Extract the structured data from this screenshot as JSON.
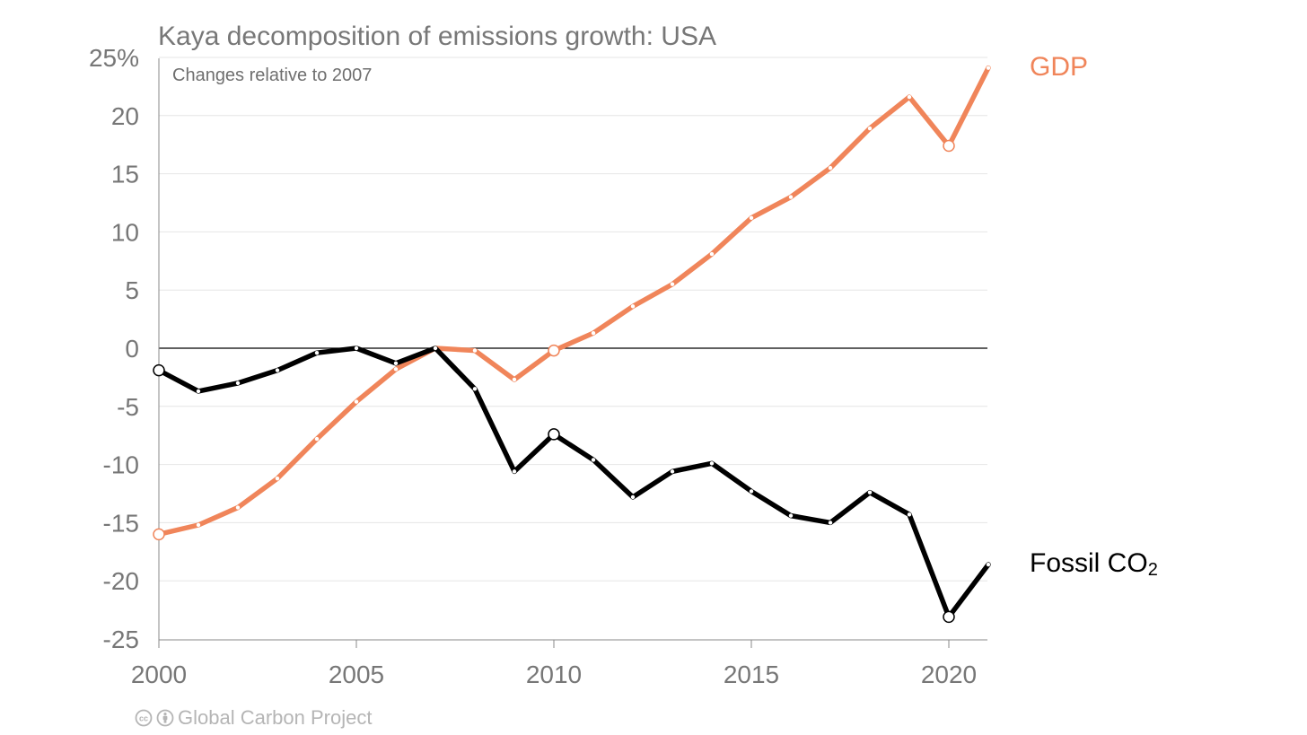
{
  "chart_data": {
    "type": "line",
    "title": "Kaya decomposition of emissions growth: USA",
    "subtitle": "Changes relative to 2007",
    "x": [
      2000,
      2001,
      2002,
      2003,
      2004,
      2005,
      2006,
      2007,
      2008,
      2009,
      2010,
      2011,
      2012,
      2013,
      2014,
      2015,
      2016,
      2017,
      2018,
      2019,
      2020,
      2021
    ],
    "series": [
      {
        "name": "GDP",
        "name_suffix": "",
        "color": "#f0855a",
        "values": [
          -16.0,
          -15.2,
          -13.7,
          -11.2,
          -7.8,
          -4.6,
          -1.8,
          0.0,
          -0.2,
          -2.7,
          -0.2,
          1.3,
          3.6,
          5.5,
          8.1,
          11.2,
          13.0,
          15.5,
          18.9,
          21.6,
          17.4,
          24.1
        ]
      },
      {
        "name": "Fossil CO",
        "name_suffix": "2",
        "color": "#000000",
        "values": [
          -1.9,
          -3.7,
          -3.0,
          -1.9,
          -0.4,
          0.0,
          -1.3,
          0.0,
          -3.5,
          -10.6,
          -7.4,
          -9.6,
          -12.8,
          -10.6,
          -9.9,
          -12.3,
          -14.4,
          -15.0,
          -12.4,
          -14.3,
          -23.1,
          -18.6
        ]
      }
    ],
    "highlight_years": [
      2000,
      2010,
      2020
    ],
    "ylim": [
      -25,
      25
    ],
    "yticks": [
      -25,
      -20,
      -15,
      -10,
      -5,
      0,
      5,
      10,
      15,
      20,
      25
    ],
    "ytick_labels": [
      "-25",
      "-20",
      "-15",
      "-10",
      "-5",
      "0",
      "5",
      "10",
      "15",
      "20",
      "25%"
    ],
    "xlim": [
      2000,
      2021
    ],
    "xticks": [
      2000,
      2005,
      2010,
      2015,
      2020
    ],
    "xtick_labels": [
      "2000",
      "2005",
      "2010",
      "2015",
      "2020"
    ],
    "grid": true,
    "legend": "inline-right"
  },
  "footer": {
    "credit": "Global Carbon Project",
    "icons": [
      "creative-commons-icon",
      "attribution-icon"
    ]
  }
}
